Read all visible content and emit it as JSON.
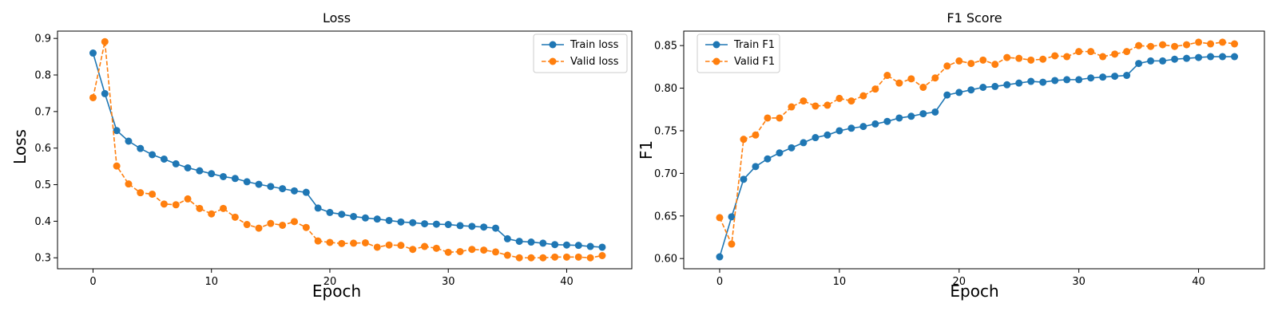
{
  "chart_data": [
    {
      "type": "line",
      "title": "Loss",
      "xlabel": "Epoch",
      "ylabel": "Loss",
      "xlim": [
        -3,
        45.5
      ],
      "ylim": [
        0.27,
        0.92
      ],
      "xticks": [
        0,
        10,
        20,
        30,
        40
      ],
      "yticks": [
        0.3,
        0.4,
        0.5,
        0.6,
        0.7,
        0.8,
        0.9
      ],
      "ytick_labels": [
        "0.3",
        "0.4",
        "0.5",
        "0.6",
        "0.7",
        "0.8",
        "0.9"
      ],
      "grid": false,
      "legend": "top-right",
      "x": [
        0,
        1,
        2,
        3,
        4,
        5,
        6,
        7,
        8,
        9,
        10,
        11,
        12,
        13,
        14,
        15,
        16,
        17,
        18,
        19,
        20,
        21,
        22,
        23,
        24,
        25,
        26,
        27,
        28,
        29,
        30,
        31,
        32,
        33,
        34,
        35,
        36,
        37,
        38,
        39,
        40,
        41,
        42,
        43
      ],
      "series": [
        {
          "name": "Train loss",
          "color": "#1f77b4",
          "dashed": false,
          "values": [
            0.86,
            0.749,
            0.648,
            0.619,
            0.599,
            0.582,
            0.57,
            0.557,
            0.546,
            0.538,
            0.53,
            0.522,
            0.517,
            0.508,
            0.501,
            0.495,
            0.489,
            0.483,
            0.479,
            0.436,
            0.424,
            0.419,
            0.413,
            0.409,
            0.406,
            0.402,
            0.398,
            0.396,
            0.393,
            0.392,
            0.391,
            0.388,
            0.386,
            0.384,
            0.381,
            0.352,
            0.345,
            0.343,
            0.34,
            0.336,
            0.335,
            0.334,
            0.331,
            0.329
          ]
        },
        {
          "name": "Valid loss",
          "color": "#ff7f0e",
          "dashed": true,
          "values": [
            0.738,
            0.891,
            0.551,
            0.502,
            0.478,
            0.474,
            0.447,
            0.445,
            0.461,
            0.435,
            0.42,
            0.435,
            0.411,
            0.391,
            0.381,
            0.394,
            0.389,
            0.399,
            0.383,
            0.346,
            0.342,
            0.339,
            0.34,
            0.341,
            0.329,
            0.335,
            0.334,
            0.323,
            0.331,
            0.326,
            0.315,
            0.317,
            0.323,
            0.321,
            0.316,
            0.307,
            0.3,
            0.3,
            0.3,
            0.302,
            0.302,
            0.302,
            0.3,
            0.306
          ]
        }
      ]
    },
    {
      "type": "line",
      "title": "F1 Score",
      "xlabel": "Epoch",
      "ylabel": "F1",
      "xlim": [
        -3,
        45.5
      ],
      "ylim": [
        0.588,
        0.867
      ],
      "xticks": [
        0,
        10,
        20,
        30,
        40
      ],
      "yticks": [
        0.6,
        0.65,
        0.7,
        0.75,
        0.8,
        0.85
      ],
      "ytick_labels": [
        "0.60",
        "0.65",
        "0.70",
        "0.75",
        "0.80",
        "0.85"
      ],
      "grid": false,
      "legend": "top-left",
      "x": [
        0,
        1,
        2,
        3,
        4,
        5,
        6,
        7,
        8,
        9,
        10,
        11,
        12,
        13,
        14,
        15,
        16,
        17,
        18,
        19,
        20,
        21,
        22,
        23,
        24,
        25,
        26,
        27,
        28,
        29,
        30,
        31,
        32,
        33,
        34,
        35,
        36,
        37,
        38,
        39,
        40,
        41,
        42,
        43
      ],
      "series": [
        {
          "name": "Train F1",
          "color": "#1f77b4",
          "dashed": false,
          "values": [
            0.602,
            0.649,
            0.693,
            0.708,
            0.717,
            0.724,
            0.73,
            0.736,
            0.742,
            0.745,
            0.75,
            0.753,
            0.755,
            0.758,
            0.761,
            0.765,
            0.767,
            0.77,
            0.772,
            0.792,
            0.795,
            0.798,
            0.801,
            0.802,
            0.804,
            0.806,
            0.808,
            0.807,
            0.809,
            0.81,
            0.81,
            0.812,
            0.813,
            0.814,
            0.815,
            0.829,
            0.832,
            0.832,
            0.834,
            0.835,
            0.836,
            0.837,
            0.837,
            0.837
          ]
        },
        {
          "name": "Valid F1",
          "color": "#ff7f0e",
          "dashed": true,
          "values": [
            0.648,
            0.617,
            0.74,
            0.745,
            0.765,
            0.765,
            0.778,
            0.785,
            0.779,
            0.78,
            0.788,
            0.785,
            0.791,
            0.799,
            0.815,
            0.806,
            0.811,
            0.801,
            0.812,
            0.826,
            0.832,
            0.829,
            0.833,
            0.828,
            0.836,
            0.835,
            0.833,
            0.834,
            0.838,
            0.837,
            0.843,
            0.843,
            0.837,
            0.84,
            0.843,
            0.85,
            0.849,
            0.851,
            0.849,
            0.851,
            0.854,
            0.852,
            0.854,
            0.852
          ]
        }
      ]
    }
  ]
}
